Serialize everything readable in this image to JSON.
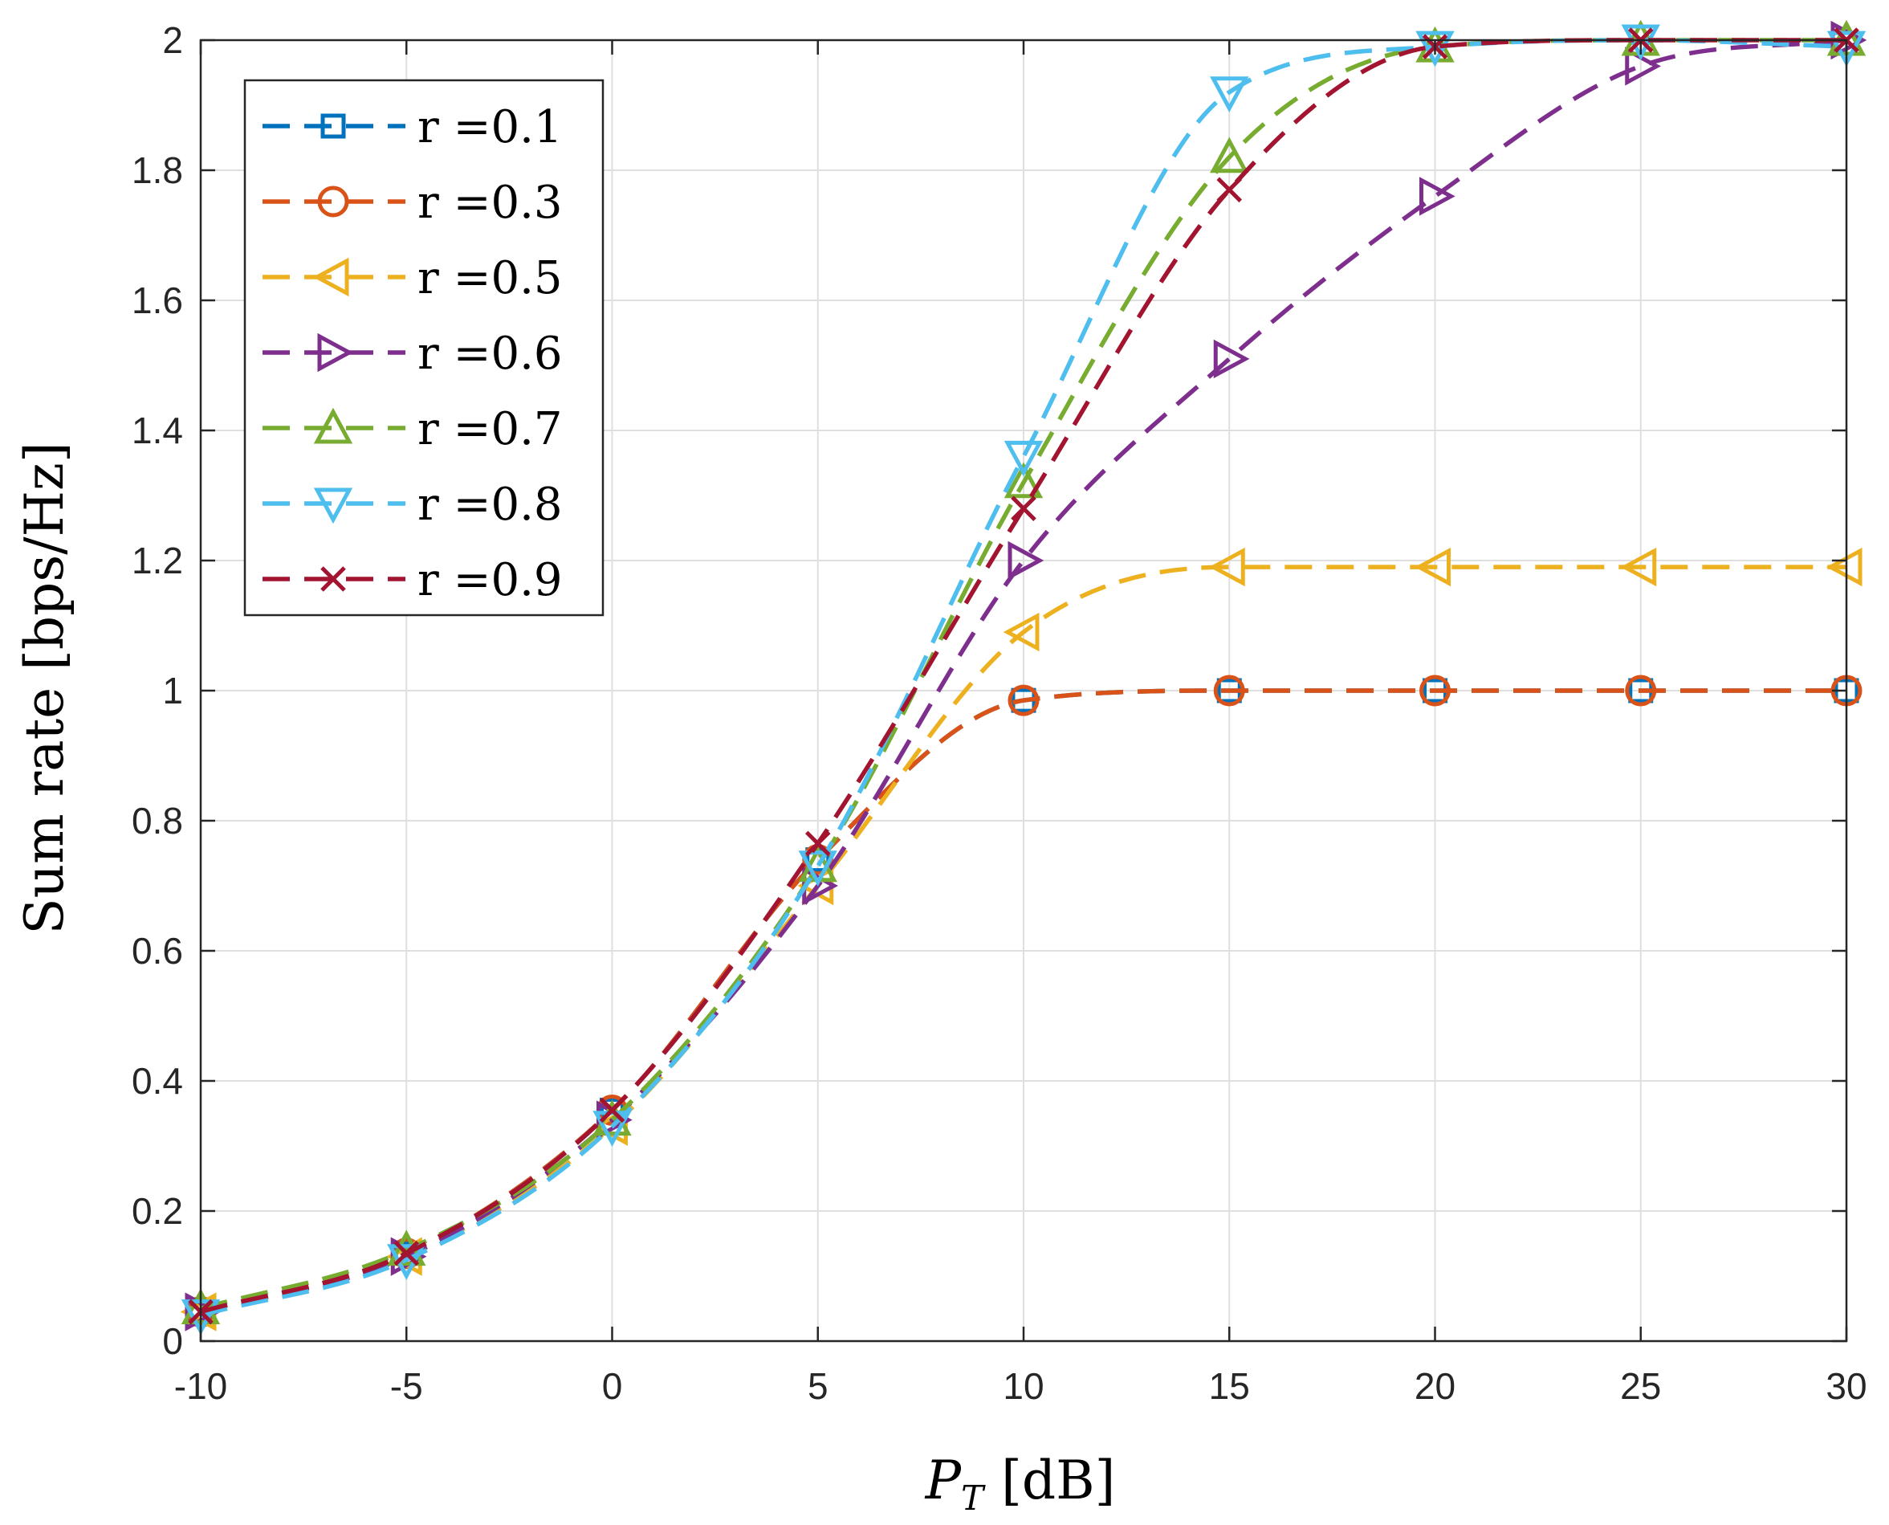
{
  "chart_data": {
    "type": "line",
    "xlabel_main": "P",
    "xlabel_sub": "T",
    "xlabel_unit": "[dB]",
    "ylabel": "Sum rate [bps/Hz]",
    "xlim": [
      -10,
      30
    ],
    "ylim": [
      0,
      2
    ],
    "xticks": [
      -10,
      -5,
      0,
      5,
      10,
      15,
      20,
      25,
      30
    ],
    "xtick_labels": [
      "-10",
      "-5",
      "0",
      "5",
      "10",
      "15",
      "20",
      "25",
      "30"
    ],
    "yticks": [
      0,
      0.2,
      0.4,
      0.6,
      0.8,
      1.0,
      1.2,
      1.4,
      1.6,
      1.8,
      2.0
    ],
    "ytick_labels": [
      "0",
      "0.2",
      "0.4",
      "0.6",
      "0.8",
      "1",
      "1.2",
      "1.4",
      "1.6",
      "1.8",
      "2"
    ],
    "grid": true,
    "legend_position": "top-left",
    "x": [
      -10,
      -5,
      0,
      5,
      10,
      15,
      20,
      25,
      30
    ],
    "series": [
      {
        "name": "r =0.1",
        "color": "#0072BD",
        "marker": "square",
        "values": [
          0.045,
          0.135,
          0.355,
          0.74,
          0.985,
          1.0,
          1.0,
          1.0,
          1.0
        ]
      },
      {
        "name": "r =0.3",
        "color": "#D95319",
        "marker": "circle",
        "values": [
          0.045,
          0.135,
          0.355,
          0.74,
          0.985,
          1.0,
          1.0,
          1.0,
          1.0
        ]
      },
      {
        "name": "r =0.5",
        "color": "#EDB120",
        "marker": "triangle-left",
        "values": [
          0.045,
          0.13,
          0.33,
          0.7,
          1.09,
          1.19,
          1.19,
          1.19,
          1.19
        ]
      },
      {
        "name": "r =0.6",
        "color": "#7E2F8E",
        "marker": "triangle-right",
        "values": [
          0.045,
          0.13,
          0.34,
          0.7,
          1.2,
          1.51,
          1.76,
          1.96,
          2.0
        ]
      },
      {
        "name": "r =0.7",
        "color": "#77AC30",
        "marker": "triangle-up",
        "values": [
          0.05,
          0.14,
          0.34,
          0.73,
          1.32,
          1.82,
          1.99,
          2.0,
          2.0
        ]
      },
      {
        "name": "r =0.8",
        "color": "#4DBEEE",
        "marker": "triangle-down",
        "values": [
          0.04,
          0.125,
          0.33,
          0.73,
          1.36,
          1.92,
          1.99,
          2.0,
          1.99
        ]
      },
      {
        "name": "r =0.9",
        "color": "#A2142F",
        "marker": "x",
        "values": [
          0.045,
          0.135,
          0.355,
          0.765,
          1.28,
          1.77,
          1.99,
          2.0,
          2.0
        ]
      }
    ]
  }
}
